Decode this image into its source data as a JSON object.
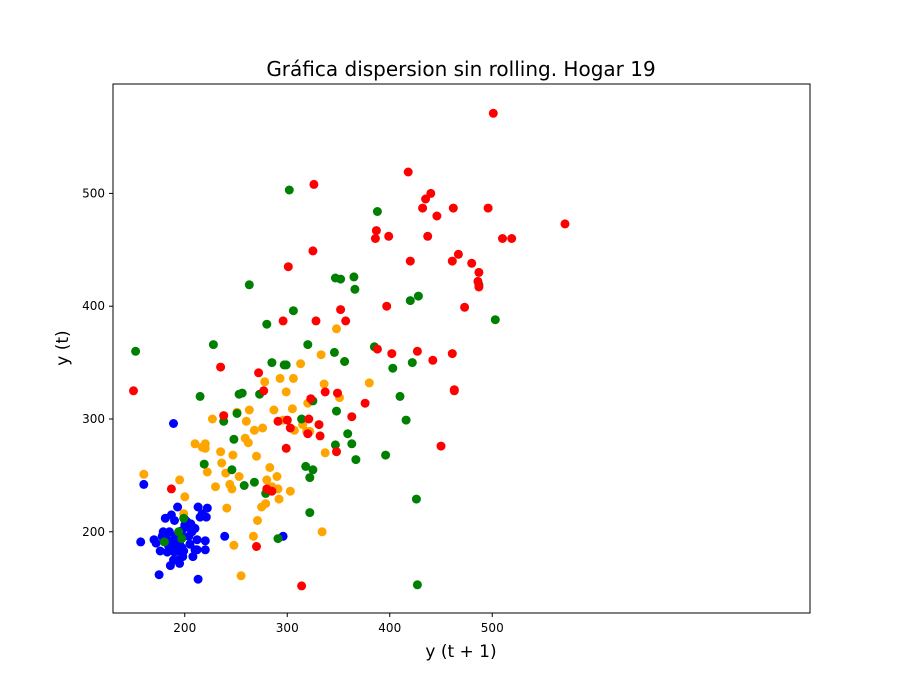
{
  "chart_data": {
    "type": "scatter",
    "title": "Gráfica dispersion sin rolling. Hogar 19",
    "xlabel": "y (t + 1)",
    "ylabel": "y (t)",
    "xlim": [
      130,
      810
    ],
    "ylim": [
      128,
      597
    ],
    "xticks": [
      200,
      300,
      400,
      500
    ],
    "yticks": [
      200,
      300,
      400,
      500
    ],
    "grid": false,
    "series": [
      {
        "color": "#0000ff",
        "points": [
          [
            157,
            191
          ],
          [
            160,
            242
          ],
          [
            170,
            193
          ],
          [
            172,
            190
          ],
          [
            175,
            162
          ],
          [
            176,
            183
          ],
          [
            178,
            196
          ],
          [
            179,
            200
          ],
          [
            180,
            193
          ],
          [
            181,
            212
          ],
          [
            182,
            197
          ],
          [
            183,
            182
          ],
          [
            184,
            188
          ],
          [
            185,
            200
          ],
          [
            186,
            170
          ],
          [
            187,
            215
          ],
          [
            188,
            192
          ],
          [
            188,
            187
          ],
          [
            189,
            175
          ],
          [
            189,
            296
          ],
          [
            190,
            210
          ],
          [
            190,
            182
          ],
          [
            191,
            196
          ],
          [
            192,
            190
          ],
          [
            193,
            183
          ],
          [
            193,
            222
          ],
          [
            194,
            175
          ],
          [
            195,
            172
          ],
          [
            195,
            189
          ],
          [
            196,
            198
          ],
          [
            197,
            186
          ],
          [
            197,
            201
          ],
          [
            198,
            178
          ],
          [
            199,
            183
          ],
          [
            200,
            206
          ],
          [
            200,
            211
          ],
          [
            202,
            209
          ],
          [
            203,
            204
          ],
          [
            204,
            196
          ],
          [
            205,
            189
          ],
          [
            206,
            207
          ],
          [
            207,
            200
          ],
          [
            208,
            178
          ],
          [
            210,
            184
          ],
          [
            210,
            203
          ],
          [
            212,
            193
          ],
          [
            212,
            184
          ],
          [
            213,
            222
          ],
          [
            213,
            158
          ],
          [
            215,
            213
          ],
          [
            217,
            216
          ],
          [
            220,
            184
          ],
          [
            220,
            192
          ],
          [
            221,
            213
          ],
          [
            222,
            221
          ],
          [
            239,
            196
          ],
          [
            296,
            196
          ]
        ]
      },
      {
        "color": "#ffa500",
        "points": [
          [
            160,
            251
          ],
          [
            195,
            246
          ],
          [
            199,
            216
          ],
          [
            200,
            231
          ],
          [
            210,
            278
          ],
          [
            217,
            275
          ],
          [
            220,
            278
          ],
          [
            220,
            274
          ],
          [
            222,
            253
          ],
          [
            227,
            300
          ],
          [
            230,
            240
          ],
          [
            235,
            271
          ],
          [
            236,
            261
          ],
          [
            240,
            252
          ],
          [
            241,
            221
          ],
          [
            244,
            242
          ],
          [
            246,
            238
          ],
          [
            247,
            268
          ],
          [
            248,
            188
          ],
          [
            251,
            306
          ],
          [
            253,
            249
          ],
          [
            255,
            161
          ],
          [
            259,
            283
          ],
          [
            260,
            298
          ],
          [
            262,
            279
          ],
          [
            263,
            308
          ],
          [
            267,
            196
          ],
          [
            268,
            290
          ],
          [
            270,
            267
          ],
          [
            271,
            210
          ],
          [
            275,
            222
          ],
          [
            276,
            292
          ],
          [
            278,
            333
          ],
          [
            279,
            225
          ],
          [
            280,
            246
          ],
          [
            283,
            257
          ],
          [
            285,
            240
          ],
          [
            287,
            308
          ],
          [
            290,
            249
          ],
          [
            291,
            238
          ],
          [
            292,
            229
          ],
          [
            293,
            336
          ],
          [
            296,
            299
          ],
          [
            299,
            324
          ],
          [
            303,
            236
          ],
          [
            305,
            309
          ],
          [
            306,
            336
          ],
          [
            307,
            290
          ],
          [
            313,
            349
          ],
          [
            315,
            295
          ],
          [
            319,
            289
          ],
          [
            320,
            314
          ],
          [
            322,
            289
          ],
          [
            333,
            357
          ],
          [
            334,
            200
          ],
          [
            336,
            331
          ],
          [
            337,
            270
          ],
          [
            348,
            380
          ],
          [
            351,
            319
          ],
          [
            356,
            351
          ],
          [
            380,
            332
          ]
        ]
      },
      {
        "color": "#008000",
        "points": [
          [
            152,
            360
          ],
          [
            180,
            191
          ],
          [
            194,
            200
          ],
          [
            197,
            194
          ],
          [
            199,
            212
          ],
          [
            215,
            320
          ],
          [
            219,
            260
          ],
          [
            228,
            366
          ],
          [
            238,
            298
          ],
          [
            246,
            255
          ],
          [
            248,
            282
          ],
          [
            251,
            305
          ],
          [
            253,
            322
          ],
          [
            256,
            323
          ],
          [
            258,
            241
          ],
          [
            263,
            419
          ],
          [
            268,
            244
          ],
          [
            273,
            322
          ],
          [
            279,
            234
          ],
          [
            280,
            384
          ],
          [
            285,
            350
          ],
          [
            291,
            194
          ],
          [
            297,
            348
          ],
          [
            299,
            348
          ],
          [
            302,
            503
          ],
          [
            306,
            396
          ],
          [
            314,
            300
          ],
          [
            318,
            258
          ],
          [
            320,
            366
          ],
          [
            322,
            248
          ],
          [
            322,
            217
          ],
          [
            325,
            255
          ],
          [
            325,
            316
          ],
          [
            346,
            359
          ],
          [
            347,
            425
          ],
          [
            347,
            277
          ],
          [
            348,
            307
          ],
          [
            352,
            424
          ],
          [
            356,
            351
          ],
          [
            359,
            287
          ],
          [
            363,
            278
          ],
          [
            365,
            426
          ],
          [
            366,
            415
          ],
          [
            367,
            264
          ],
          [
            385,
            364
          ],
          [
            388,
            484
          ],
          [
            396,
            268
          ],
          [
            403,
            345
          ],
          [
            410,
            320
          ],
          [
            416,
            299
          ],
          [
            420,
            405
          ],
          [
            422,
            350
          ],
          [
            426,
            229
          ],
          [
            427,
            153
          ],
          [
            428,
            409
          ],
          [
            487,
            419
          ],
          [
            503,
            388
          ]
        ]
      },
      {
        "color": "#ff0000",
        "points": [
          [
            150,
            325
          ],
          [
            187,
            238
          ],
          [
            235,
            346
          ],
          [
            238,
            303
          ],
          [
            270,
            187
          ],
          [
            272,
            341
          ],
          [
            277,
            325
          ],
          [
            280,
            238
          ],
          [
            285,
            236
          ],
          [
            291,
            298
          ],
          [
            296,
            387
          ],
          [
            299,
            274
          ],
          [
            300,
            299
          ],
          [
            301,
            435
          ],
          [
            303,
            292
          ],
          [
            314,
            152
          ],
          [
            320,
            287
          ],
          [
            321,
            300
          ],
          [
            323,
            318
          ],
          [
            325,
            449
          ],
          [
            326,
            508
          ],
          [
            328,
            387
          ],
          [
            331,
            295
          ],
          [
            332,
            285
          ],
          [
            337,
            324
          ],
          [
            348,
            271
          ],
          [
            349,
            323
          ],
          [
            352,
            397
          ],
          [
            357,
            387
          ],
          [
            363,
            302
          ],
          [
            376,
            314
          ],
          [
            386,
            460
          ],
          [
            387,
            467
          ],
          [
            388,
            362
          ],
          [
            397,
            400
          ],
          [
            399,
            462
          ],
          [
            402,
            358
          ],
          [
            418,
            519
          ],
          [
            420,
            440
          ],
          [
            427,
            360
          ],
          [
            432,
            487
          ],
          [
            435,
            495
          ],
          [
            437,
            462
          ],
          [
            440,
            500
          ],
          [
            442,
            352
          ],
          [
            446,
            480
          ],
          [
            450,
            276
          ],
          [
            461,
            358
          ],
          [
            461,
            440
          ],
          [
            462,
            487
          ],
          [
            463,
            326
          ],
          [
            463,
            325
          ],
          [
            467,
            446
          ],
          [
            473,
            399
          ],
          [
            480,
            438
          ],
          [
            486,
            422
          ],
          [
            487,
            430
          ],
          [
            487,
            417
          ],
          [
            496,
            487
          ],
          [
            501,
            571
          ],
          [
            510,
            460
          ],
          [
            519,
            460
          ],
          [
            571,
            473
          ]
        ]
      }
    ]
  }
}
